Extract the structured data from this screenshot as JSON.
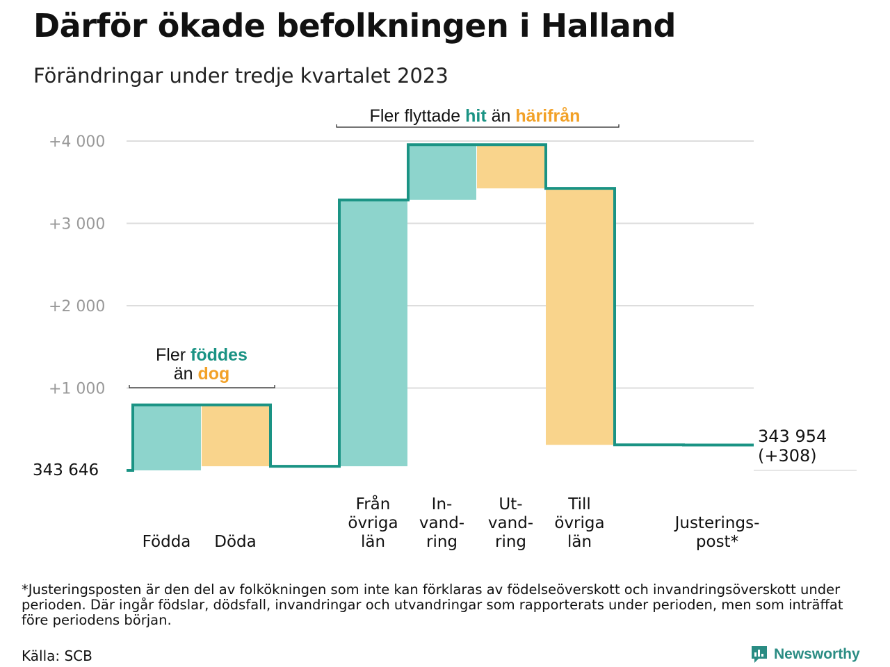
{
  "title": "Därför ökade befolkningen i Halland",
  "subtitle": "Förändringar under tredje kvartalet 2023",
  "footnote": "*Justeringsposten är den del av folkökningen som inte kan förklaras av födelseöverskott och invandringsöverskott under perioden. Där ingår födslar, dödsfall, invandringar och utvandringar som rapporterats under perioden, men som inträffat före periodens början.",
  "source": "Källa: SCB",
  "brand": {
    "name": "Newsworthy",
    "logo_icon": "bar-chart-speech-icon"
  },
  "colors": {
    "increase": "#8dd4cc",
    "decrease": "#f9d48c",
    "line": "#1a9384",
    "teal_text": "#1a9384",
    "orange_text": "#f2a127",
    "grid": "#dddddd",
    "tick": "#999999"
  },
  "annotations": [
    {
      "id": "births",
      "parts": [
        [
          {
            "text": "Fler ",
            "style": "plain"
          },
          {
            "text": "föddes",
            "style": "teal"
          }
        ],
        [
          {
            "text": "än ",
            "style": "plain"
          },
          {
            "text": "dog",
            "style": "orange"
          }
        ]
      ]
    },
    {
      "id": "migration",
      "parts": [
        [
          {
            "text": "Fler flyttade ",
            "style": "plain"
          },
          {
            "text": "hit",
            "style": "teal"
          },
          {
            "text": " än ",
            "style": "plain"
          },
          {
            "text": "härifrån",
            "style": "orange"
          }
        ]
      ]
    }
  ],
  "chart_data": {
    "type": "waterfall",
    "start_value": 343646,
    "start_label": "343 646",
    "end_value": 343954,
    "end_label": "343 954",
    "end_change_label": "(+308)",
    "ylim": [
      0,
      4000
    ],
    "ytick_values": [
      1000,
      2000,
      3000,
      4000
    ],
    "ytick_labels": [
      "+1  000",
      "+2  000",
      "+3  000",
      "+4  000"
    ],
    "grid": true,
    "steps": [
      {
        "label": [
          "Födda"
        ],
        "change": 795,
        "kind": "increase"
      },
      {
        "label": [
          "Döda"
        ],
        "change": -745,
        "kind": "decrease"
      },
      {
        "label": [],
        "change": 0,
        "kind": "gap"
      },
      {
        "label": [
          "Från",
          "övriga",
          "län"
        ],
        "change": 3235,
        "kind": "increase"
      },
      {
        "label": [
          "In-",
          "vand-",
          "ring"
        ],
        "change": 670,
        "kind": "increase"
      },
      {
        "label": [
          "Ut-",
          "vand-",
          "ring"
        ],
        "change": -530,
        "kind": "decrease"
      },
      {
        "label": [
          "Till",
          "övriga",
          "län"
        ],
        "change": -3115,
        "kind": "decrease"
      },
      {
        "label": [],
        "change": 0,
        "kind": "gap"
      },
      {
        "label": [
          "Justerings-",
          "post*"
        ],
        "change": -2,
        "kind": "adjustment"
      }
    ]
  }
}
